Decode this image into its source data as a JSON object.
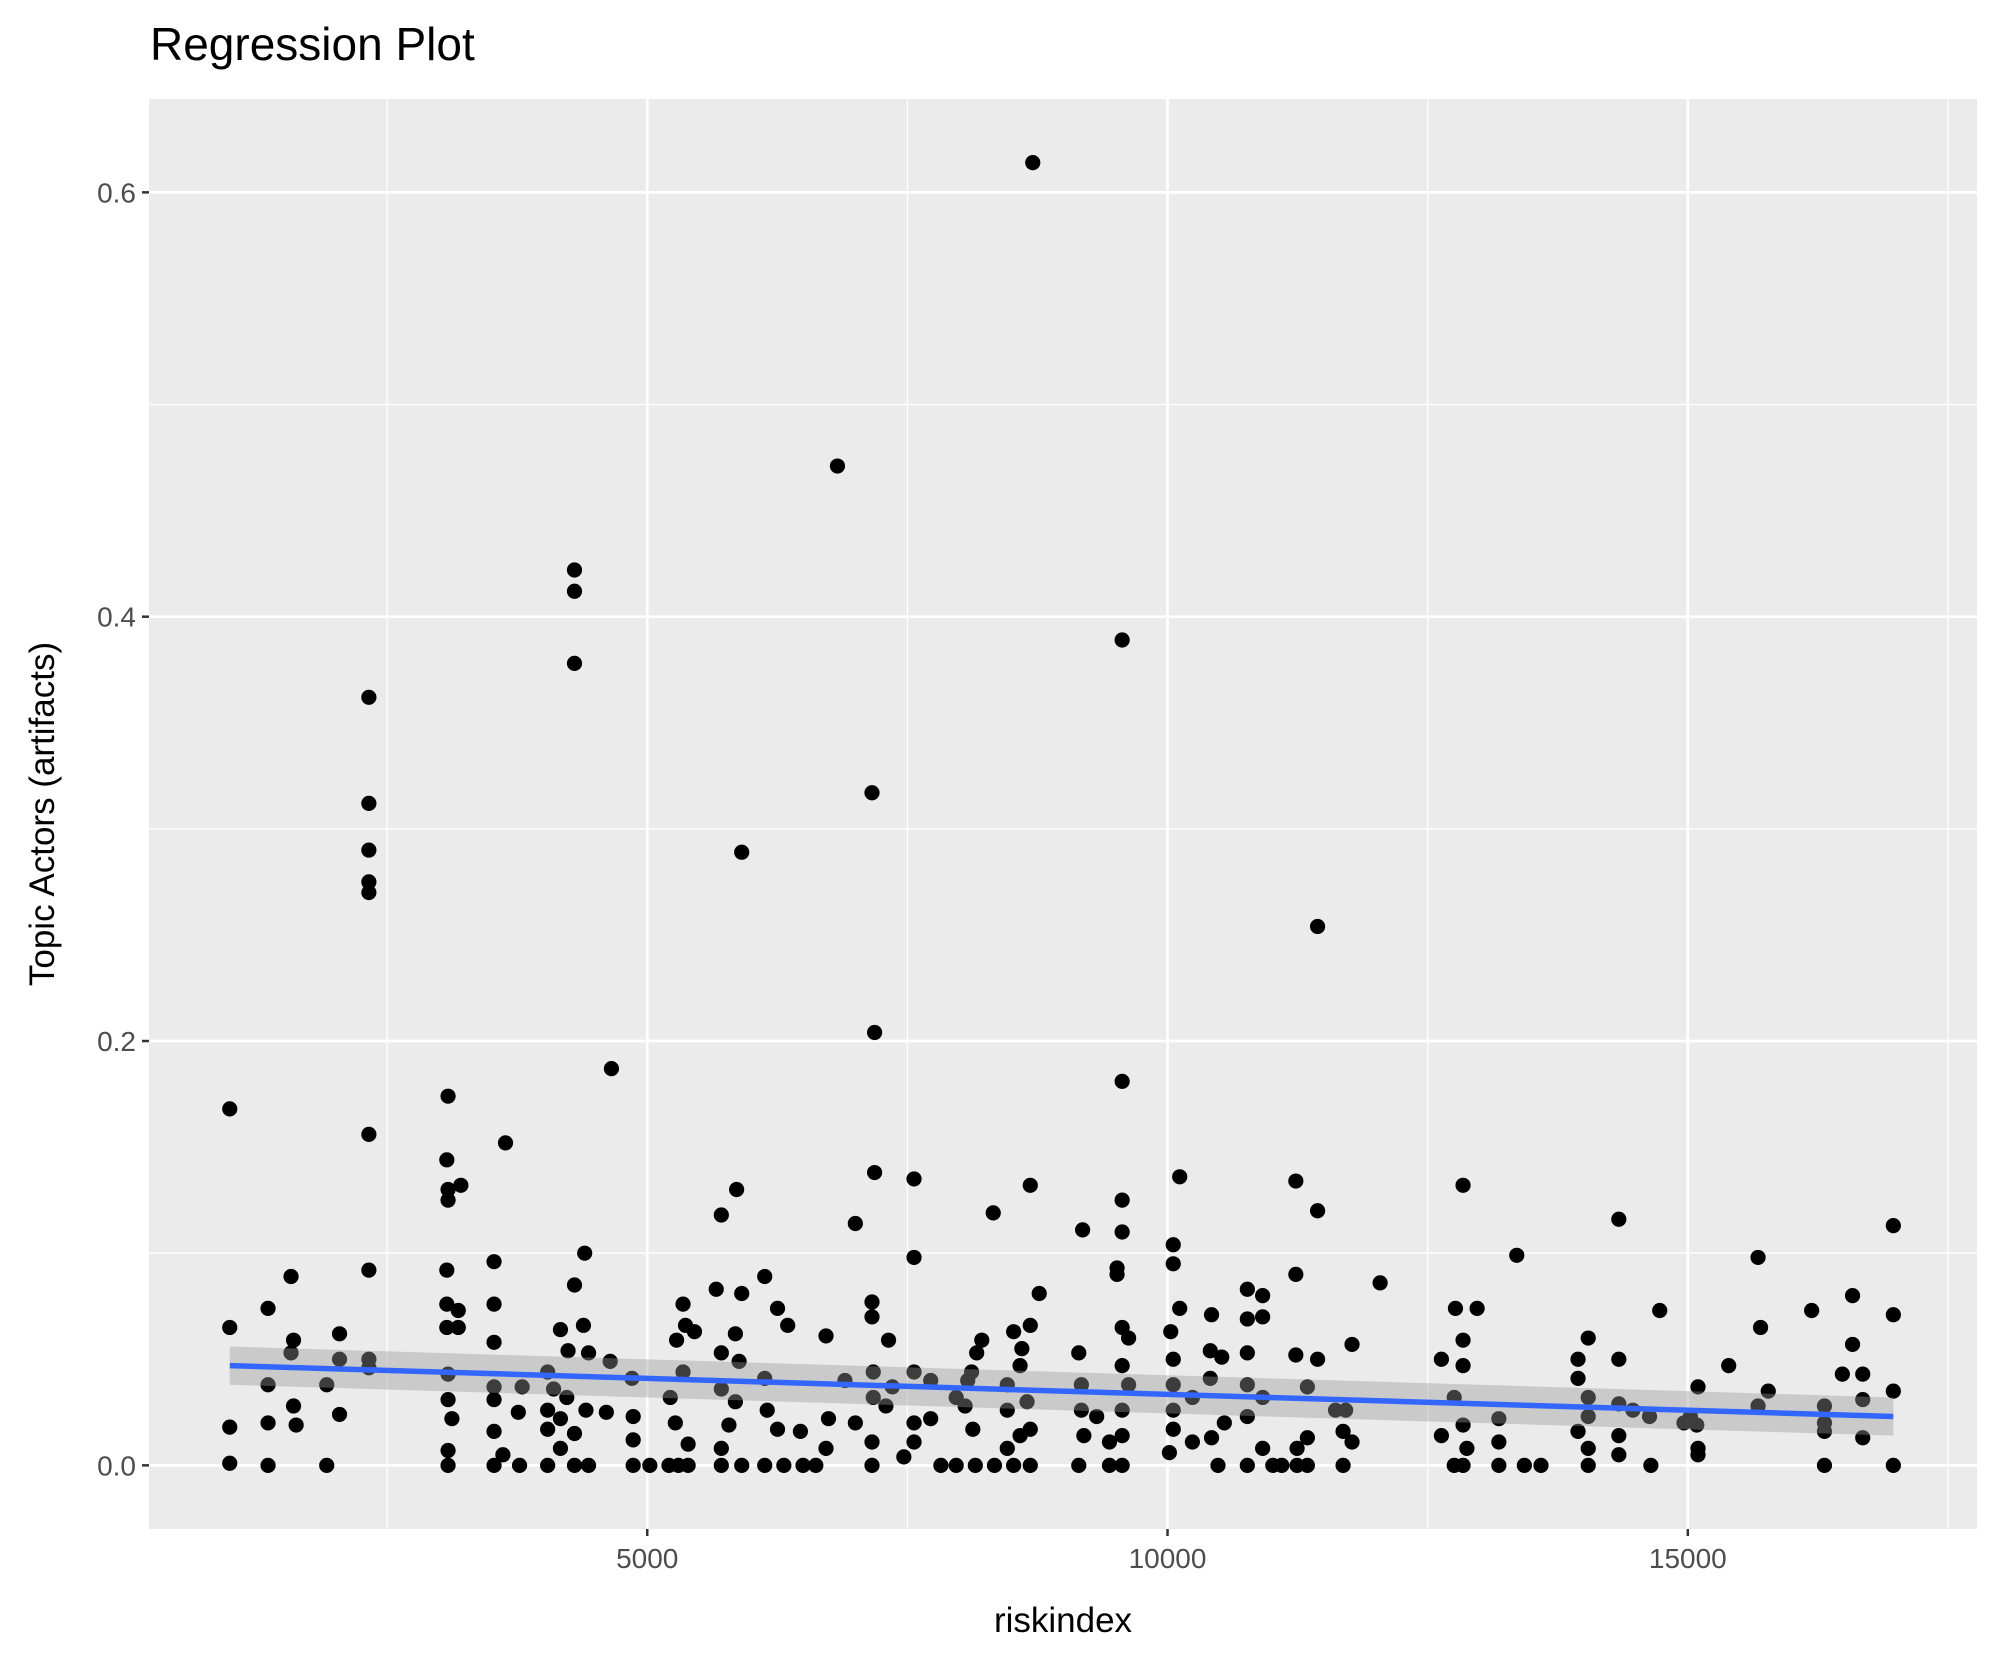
{
  "chart_data": {
    "type": "scatter",
    "title": "Regression Plot",
    "xlabel": "riskindex",
    "ylabel": "Topic Actors (artifacts)",
    "xlim": [
      212,
      17779
    ],
    "ylim": [
      -0.03,
      0.644
    ],
    "x_ticks": [
      5000,
      10000,
      15000
    ],
    "x_tick_labels": [
      "5000",
      "10000",
      "15000"
    ],
    "y_ticks": [
      0.0,
      0.2,
      0.4,
      0.6
    ],
    "y_tick_labels": [
      "0.0",
      "0.2",
      "0.4",
      "0.6"
    ],
    "grid": true,
    "colors": {
      "panel": "#ebebeb",
      "grid": "#ffffff",
      "points": "#000000",
      "fit": "#3366ff",
      "ci": "#bdbdbd"
    },
    "regression": {
      "method": "lm",
      "x": [
        988,
        16975
      ],
      "y": [
        0.047,
        0.023
      ],
      "ci_halfwidth": [
        0.009,
        0.009
      ]
    },
    "points": [
      [
        988,
        0.168
      ],
      [
        988,
        0.065
      ],
      [
        988,
        0.018
      ],
      [
        988,
        0.001
      ],
      [
        1356,
        0.074
      ],
      [
        1356,
        0.038
      ],
      [
        1356,
        0.02
      ],
      [
        1356,
        0
      ],
      [
        1577,
        0.089
      ],
      [
        1601,
        0.059
      ],
      [
        1601,
        0.028
      ],
      [
        1626,
        0.019
      ],
      [
        1577,
        0.053
      ],
      [
        1920,
        0.038
      ],
      [
        1920,
        0
      ],
      [
        2043,
        0.062
      ],
      [
        2043,
        0.05
      ],
      [
        2043,
        0.024
      ],
      [
        2325,
        0.362
      ],
      [
        2325,
        0.312
      ],
      [
        2325,
        0.29
      ],
      [
        2325,
        0.275
      ],
      [
        2325,
        0.27
      ],
      [
        2325,
        0.156
      ],
      [
        2325,
        0.092
      ],
      [
        2325,
        0.05
      ],
      [
        2325,
        0.046
      ],
      [
        3086,
        0.174
      ],
      [
        3074,
        0.144
      ],
      [
        3086,
        0.13
      ],
      [
        3086,
        0.125
      ],
      [
        3209,
        0.132
      ],
      [
        3074,
        0.092
      ],
      [
        3074,
        0.076
      ],
      [
        3184,
        0.073
      ],
      [
        3074,
        0.065
      ],
      [
        3184,
        0.065
      ],
      [
        3086,
        0.043
      ],
      [
        3086,
        0.031
      ],
      [
        3123,
        0.022
      ],
      [
        3086,
        0.007
      ],
      [
        3086,
        0
      ],
      [
        3638,
        0.152
      ],
      [
        3528,
        0.096
      ],
      [
        3528,
        0.076
      ],
      [
        3528,
        0.058
      ],
      [
        3528,
        0.037
      ],
      [
        3528,
        0.031
      ],
      [
        3528,
        0.016
      ],
      [
        3528,
        0
      ],
      [
        3613,
        0.005
      ],
      [
        3798,
        0.037
      ],
      [
        3761,
        0.025
      ],
      [
        3773,
        0
      ],
      [
        4301,
        0.422
      ],
      [
        4301,
        0.412
      ],
      [
        4301,
        0.378
      ],
      [
        4656,
        0.187
      ],
      [
        4399,
        0.1
      ],
      [
        4301,
        0.085
      ],
      [
        4387,
        0.066
      ],
      [
        4166,
        0.064
      ],
      [
        4239,
        0.054
      ],
      [
        4043,
        0.044
      ],
      [
        4436,
        0.053
      ],
      [
        4644,
        0.049
      ],
      [
        4043,
        0.026
      ],
      [
        4043,
        0.017
      ],
      [
        4166,
        0.008
      ],
      [
        4043,
        0
      ],
      [
        4301,
        0
      ],
      [
        4436,
        0
      ],
      [
        4227,
        0.032
      ],
      [
        4411,
        0.026
      ],
      [
        4607,
        0.025
      ],
      [
        4166,
        0.022
      ],
      [
        4301,
        0.015
      ],
      [
        4100,
        0.036
      ],
      [
        4853,
        0.041
      ],
      [
        4865,
        0.023
      ],
      [
        4865,
        0.012
      ],
      [
        4865,
        0
      ],
      [
        5025,
        0
      ],
      [
        5209,
        0
      ],
      [
        5393,
        0
      ],
      [
        5344,
        0.076
      ],
      [
        5368,
        0.066
      ],
      [
        5454,
        0.063
      ],
      [
        5282,
        0.059
      ],
      [
        5344,
        0.044
      ],
      [
        5221,
        0.032
      ],
      [
        5270,
        0.02
      ],
      [
        5393,
        0.01
      ],
      [
        5300,
        0
      ],
      [
        5712,
        0.118
      ],
      [
        5859,
        0.13
      ],
      [
        5908,
        0.289
      ],
      [
        5663,
        0.083
      ],
      [
        5712,
        0.053
      ],
      [
        5847,
        0.062
      ],
      [
        5883,
        0.049
      ],
      [
        5908,
        0.081
      ],
      [
        5712,
        0.036
      ],
      [
        5847,
        0.03
      ],
      [
        5785,
        0.019
      ],
      [
        5712,
        0.008
      ],
      [
        5712,
        0
      ],
      [
        5908,
        0
      ],
      [
        6129,
        0.089
      ],
      [
        6252,
        0.074
      ],
      [
        6350,
        0.066
      ],
      [
        6129,
        0.041
      ],
      [
        6153,
        0.026
      ],
      [
        6252,
        0.017
      ],
      [
        6129,
        0
      ],
      [
        6313,
        0
      ],
      [
        6497,
        0
      ],
      [
        6472,
        0.016
      ],
      [
        6620,
        0
      ],
      [
        6718,
        0.061
      ],
      [
        6742,
        0.022
      ],
      [
        6718,
        0.008
      ],
      [
        6828,
        0.471
      ],
      [
        7000,
        0.114
      ],
      [
        7160,
        0.317
      ],
      [
        7185,
        0.204
      ],
      [
        7185,
        0.138
      ],
      [
        7160,
        0.077
      ],
      [
        7160,
        0.07
      ],
      [
        7172,
        0.044
      ],
      [
        7172,
        0.032
      ],
      [
        7160,
        0.011
      ],
      [
        7160,
        0
      ],
      [
        7319,
        0.059
      ],
      [
        7294,
        0.028
      ],
      [
        7355,
        0.037
      ],
      [
        6900,
        0.04
      ],
      [
        7000,
        0.02
      ],
      [
        7564,
        0.135
      ],
      [
        7564,
        0.098
      ],
      [
        7564,
        0.044
      ],
      [
        7564,
        0.02
      ],
      [
        7564,
        0.011
      ],
      [
        7466,
        0.004
      ],
      [
        7724,
        0.04
      ],
      [
        7724,
        0.022
      ],
      [
        7822,
        0
      ],
      [
        7969,
        0
      ],
      [
        8153,
        0
      ],
      [
        7969,
        0.032
      ],
      [
        8055,
        0.028
      ],
      [
        8080,
        0.04
      ],
      [
        8166,
        0.053
      ],
      [
        8215,
        0.059
      ],
      [
        8117,
        0.044
      ],
      [
        8129,
        0.017
      ],
      [
        8325,
        0.119
      ],
      [
        8705,
        0.614
      ],
      [
        8681,
        0.132
      ],
      [
        8767,
        0.081
      ],
      [
        8521,
        0.063
      ],
      [
        8681,
        0.066
      ],
      [
        8583,
        0.047
      ],
      [
        8460,
        0.038
      ],
      [
        8460,
        0.026
      ],
      [
        8583,
        0.014
      ],
      [
        8521,
        0
      ],
      [
        8337,
        0
      ],
      [
        8681,
        0
      ],
      [
        8681,
        0.017
      ],
      [
        8460,
        0.008
      ],
      [
        8600,
        0.055
      ],
      [
        8650,
        0.03
      ],
      [
        9184,
        0.111
      ],
      [
        9147,
        0.053
      ],
      [
        9172,
        0.038
      ],
      [
        9172,
        0.026
      ],
      [
        9196,
        0.014
      ],
      [
        9147,
        0
      ],
      [
        9319,
        0.023
      ],
      [
        9564,
        0.389
      ],
      [
        9564,
        0.181
      ],
      [
        9564,
        0.125
      ],
      [
        9564,
        0.11
      ],
      [
        9515,
        0.093
      ],
      [
        9515,
        0.09
      ],
      [
        9564,
        0.065
      ],
      [
        9626,
        0.06
      ],
      [
        9564,
        0.047
      ],
      [
        9626,
        0.038
      ],
      [
        9564,
        0.026
      ],
      [
        9564,
        0.014
      ],
      [
        9442,
        0.011
      ],
      [
        9442,
        0
      ],
      [
        9564,
        0
      ],
      [
        10055,
        0.104
      ],
      [
        10055,
        0.095
      ],
      [
        10117,
        0.136
      ],
      [
        10031,
        0.063
      ],
      [
        10055,
        0.05
      ],
      [
        10117,
        0.074
      ],
      [
        10055,
        0.038
      ],
      [
        10055,
        0.026
      ],
      [
        10055,
        0.017
      ],
      [
        10018,
        0.006
      ],
      [
        10239,
        0.032
      ],
      [
        10239,
        0.011
      ],
      [
        10423,
        0.071
      ],
      [
        10411,
        0.054
      ],
      [
        10411,
        0.041
      ],
      [
        10423,
        0.013
      ],
      [
        10485,
        0
      ],
      [
        10521,
        0.051
      ],
      [
        10546,
        0.02
      ],
      [
        10767,
        0.083
      ],
      [
        10914,
        0.08
      ],
      [
        10914,
        0.07
      ],
      [
        10767,
        0.069
      ],
      [
        10767,
        0.053
      ],
      [
        10767,
        0.038
      ],
      [
        10767,
        0.023
      ],
      [
        10767,
        0
      ],
      [
        10914,
        0.032
      ],
      [
        10914,
        0.008
      ],
      [
        11012,
        0
      ],
      [
        11098,
        0
      ],
      [
        11233,
        0.134
      ],
      [
        11442,
        0.254
      ],
      [
        11442,
        0.12
      ],
      [
        11233,
        0.09
      ],
      [
        11233,
        0.052
      ],
      [
        11442,
        0.05
      ],
      [
        11344,
        0.037
      ],
      [
        11344,
        0.013
      ],
      [
        11245,
        0.008
      ],
      [
        11245,
        0
      ],
      [
        11344,
        0
      ],
      [
        11614,
        0.026
      ],
      [
        11712,
        0.026
      ],
      [
        11687,
        0.016
      ],
      [
        11687,
        0
      ],
      [
        11773,
        0.011
      ],
      [
        11773,
        0.057
      ],
      [
        12043,
        0.086
      ],
      [
        12632,
        0.05
      ],
      [
        12632,
        0.014
      ],
      [
        12767,
        0.074
      ],
      [
        12840,
        0.132
      ],
      [
        12840,
        0.059
      ],
      [
        12840,
        0.047
      ],
      [
        12755,
        0.032
      ],
      [
        12840,
        0.019
      ],
      [
        12755,
        0
      ],
      [
        12840,
        0
      ],
      [
        12975,
        0.074
      ],
      [
        12877,
        0.008
      ],
      [
        13184,
        0.022
      ],
      [
        13184,
        0.011
      ],
      [
        13184,
        0
      ],
      [
        13356,
        0.099
      ],
      [
        13429,
        0
      ],
      [
        13589,
        0
      ],
      [
        13945,
        0.05
      ],
      [
        14043,
        0.06
      ],
      [
        13945,
        0.041
      ],
      [
        14043,
        0.032
      ],
      [
        14043,
        0.023
      ],
      [
        13945,
        0.016
      ],
      [
        14043,
        0.008
      ],
      [
        14043,
        0
      ],
      [
        14337,
        0.116
      ],
      [
        14337,
        0.05
      ],
      [
        14337,
        0.029
      ],
      [
        14337,
        0.014
      ],
      [
        14337,
        0.005
      ],
      [
        14472,
        0.026
      ],
      [
        14632,
        0.023
      ],
      [
        14645,
        0
      ],
      [
        14730,
        0.073
      ],
      [
        15025,
        0.023
      ],
      [
        15086,
        0.019
      ],
      [
        15098,
        0.037
      ],
      [
        15098,
        0.008
      ],
      [
        15098,
        0.005
      ],
      [
        14963,
        0.02
      ],
      [
        15393,
        0.047
      ],
      [
        15675,
        0.098
      ],
      [
        15699,
        0.065
      ],
      [
        15773,
        0.035
      ],
      [
        15675,
        0.028
      ],
      [
        16190,
        0.073
      ],
      [
        16313,
        0.028
      ],
      [
        16313,
        0.02
      ],
      [
        16313,
        0.016
      ],
      [
        16313,
        0
      ],
      [
        16485,
        0.043
      ],
      [
        16583,
        0.057
      ],
      [
        16583,
        0.08
      ],
      [
        16681,
        0.043
      ],
      [
        16681,
        0.031
      ],
      [
        16681,
        0.013
      ],
      [
        16975,
        0.113
      ],
      [
        16975,
        0.071
      ],
      [
        16975,
        0.035
      ],
      [
        16975,
        0
      ]
    ]
  }
}
